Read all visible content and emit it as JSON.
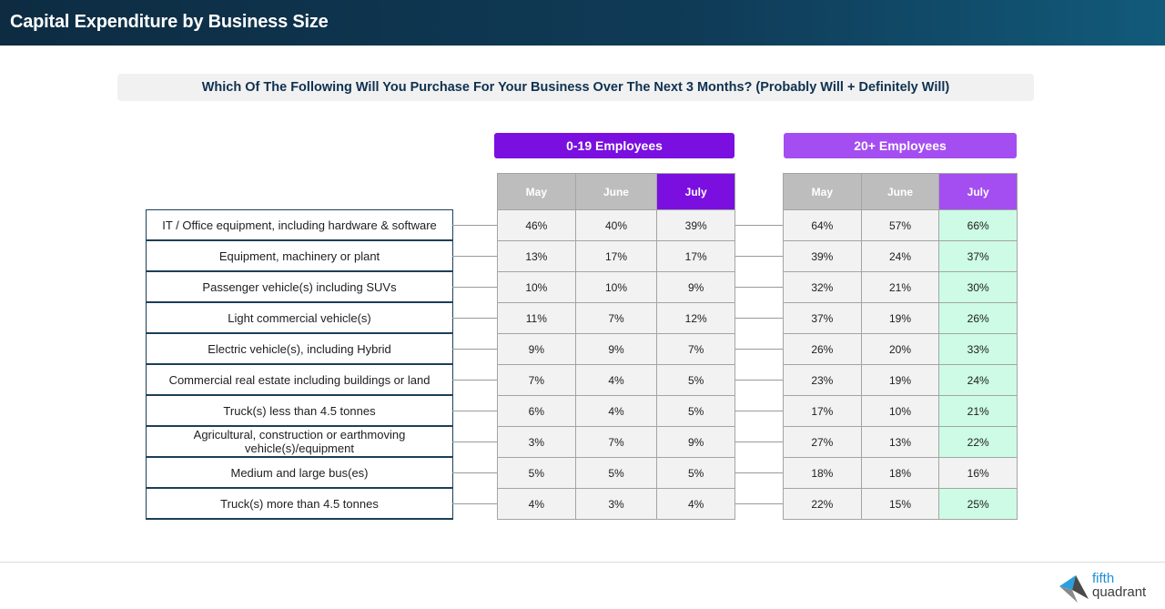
{
  "page": {
    "title": "Capital Expenditure by Business Size"
  },
  "question": "Which Of The Following Will You Purchase For Your Business Over The Next 3 Months? (Probably Will + Definitely Will)",
  "groups": [
    {
      "name": "0-19 Employees",
      "color": "#7a0fe0"
    },
    {
      "name": "20+ Employees",
      "color": "#a44ef2"
    }
  ],
  "columns": [
    "May",
    "June",
    "July"
  ],
  "rows": [
    {
      "label": "IT / Office equipment, including hardware & software",
      "small": [
        "46%",
        "40%",
        "39%"
      ],
      "large": [
        "64%",
        "57%",
        "66%"
      ]
    },
    {
      "label": "Equipment, machinery or plant",
      "small": [
        "13%",
        "17%",
        "17%"
      ],
      "large": [
        "39%",
        "24%",
        "37%"
      ]
    },
    {
      "label": "Passenger vehicle(s) including SUVs",
      "small": [
        "10%",
        "10%",
        "9%"
      ],
      "large": [
        "32%",
        "21%",
        "30%"
      ]
    },
    {
      "label": "Light commercial vehicle(s)",
      "small": [
        "11%",
        "7%",
        "12%"
      ],
      "large": [
        "37%",
        "19%",
        "26%"
      ]
    },
    {
      "label": "Electric vehicle(s), including Hybrid",
      "small": [
        "9%",
        "9%",
        "7%"
      ],
      "large": [
        "26%",
        "20%",
        "33%"
      ]
    },
    {
      "label": "Commercial real estate including buildings or land",
      "small": [
        "7%",
        "4%",
        "5%"
      ],
      "large": [
        "23%",
        "19%",
        "24%"
      ]
    },
    {
      "label": "Truck(s) less than 4.5 tonnes",
      "small": [
        "6%",
        "4%",
        "5%"
      ],
      "large": [
        "17%",
        "10%",
        "21%"
      ]
    },
    {
      "label": "Agricultural, construction or earthmoving vehicle(s)/equipment",
      "small": [
        "3%",
        "7%",
        "9%"
      ],
      "large": [
        "27%",
        "13%",
        "22%"
      ]
    },
    {
      "label": "Medium and large bus(es)",
      "small": [
        "5%",
        "5%",
        "5%"
      ],
      "large": [
        "18%",
        "18%",
        "16%"
      ]
    },
    {
      "label": "Truck(s) more than 4.5 tonnes",
      "small": [
        "4%",
        "3%",
        "4%"
      ],
      "large": [
        "22%",
        "15%",
        "25%"
      ]
    }
  ],
  "highlight": {
    "green_color": "#cdfbe5",
    "large_july_highlighted": [
      true,
      true,
      true,
      true,
      true,
      true,
      true,
      true,
      false,
      true
    ]
  },
  "logo": {
    "word1": "fifth",
    "word2": "quadrant",
    "icon": "fifth-quadrant-logo-icon"
  }
}
